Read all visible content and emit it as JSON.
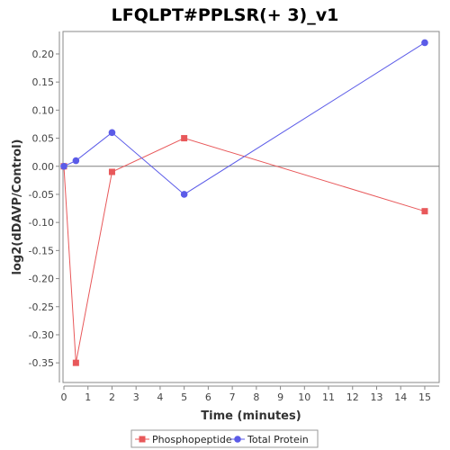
{
  "chart_data": {
    "type": "line",
    "title": "LFQLPT#PPLSR(+ 3)_v1",
    "xlabel": "Time (minutes)",
    "ylabel": "log2(dDAVP/Control)",
    "xlim": [
      0,
      15.6
    ],
    "ylim": [
      -0.385,
      0.24
    ],
    "x_ticks": [
      0,
      1,
      2,
      3,
      4,
      5,
      6,
      7,
      8,
      9,
      10,
      11,
      12,
      13,
      14,
      15
    ],
    "y_ticks": [
      0.2,
      0.15,
      0.1,
      0.05,
      0.0,
      -0.05,
      -0.1,
      -0.15,
      -0.2,
      -0.25,
      -0.3,
      -0.35
    ],
    "y_tick_labels": [
      "0.20",
      "0.15",
      "0.10",
      "0.05",
      "0.00",
      "-0.05",
      "-0.10",
      "-0.15",
      "-0.20",
      "-0.25",
      "-0.30",
      "-0.35"
    ],
    "grid": false,
    "zero_line": true,
    "legend_position": "bottom",
    "series": [
      {
        "name": "Phosphopeptide",
        "marker": "square",
        "color": "#e8585a",
        "points": [
          [
            0,
            0.0
          ],
          [
            0.5,
            -0.35
          ],
          [
            2,
            -0.01
          ],
          [
            5,
            0.05
          ],
          [
            15,
            -0.08
          ]
        ]
      },
      {
        "name": "Total Protein",
        "marker": "circle",
        "color": "#5b5be8",
        "points": [
          [
            0,
            0.0
          ],
          [
            0.5,
            0.01
          ],
          [
            2,
            0.06
          ],
          [
            5,
            -0.05
          ],
          [
            15,
            0.22
          ]
        ]
      }
    ]
  }
}
